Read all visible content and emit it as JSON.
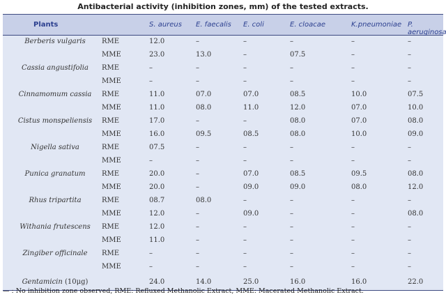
{
  "title": "Antibacterial activity (inhibition zones, mm) of the tested extracts.",
  "headers": [
    "Plants",
    "S. aureus",
    "E. faecalis",
    "E. coli",
    "E. cloacae",
    "K.pneumoniae",
    "P. aeruginosa"
  ],
  "rows": [
    {
      "plant": "Berberis vulgaris",
      "ext": "RME",
      "v": [
        "12.0",
        "–",
        "–",
        "–",
        "–",
        "–"
      ]
    },
    {
      "plant": "",
      "ext": "MME",
      "v": [
        "23.0",
        "13.0",
        "–",
        "07.5",
        "–",
        "–"
      ]
    },
    {
      "plant": "Cassia angustifolia",
      "ext": "RME",
      "v": [
        "–",
        "–",
        "–",
        "–",
        "–",
        "–"
      ]
    },
    {
      "plant": "",
      "ext": "MME",
      "v": [
        "–",
        "–",
        "–",
        "–",
        "–",
        "–"
      ]
    },
    {
      "plant": "Cinnamomum cassia",
      "ext": "RME",
      "v": [
        "11.0",
        "07.0",
        "07.0",
        "08.5",
        "10.0",
        "07.5"
      ]
    },
    {
      "plant": "",
      "ext": "MME",
      "v": [
        "11.0",
        "08.0",
        "11.0",
        "12.0",
        "07.0",
        "10.0"
      ]
    },
    {
      "plant": "Cistus monspeliensis",
      "ext": "RME",
      "v": [
        "17.0",
        "–",
        "–",
        "08.0",
        "07.0",
        "08.0"
      ]
    },
    {
      "plant": "",
      "ext": "MME",
      "v": [
        "16.0",
        "09.5",
        "08.5",
        "08.0",
        "10.0",
        "09.0"
      ]
    },
    {
      "plant": "Nigella sativa",
      "ext": "RME",
      "v": [
        "07.5",
        "–",
        "–",
        "–",
        "–",
        "–"
      ]
    },
    {
      "plant": "",
      "ext": "MME",
      "v": [
        "–",
        "–",
        "–",
        "–",
        "–",
        "–"
      ]
    },
    {
      "plant": "Punica granatum",
      "ext": "RME",
      "v": [
        "20.0",
        "–",
        "07.0",
        "08.5",
        "09.5",
        "08.0"
      ]
    },
    {
      "plant": "",
      "ext": "MME",
      "v": [
        "20.0",
        "–",
        "09.0",
        "09.0",
        "08.0",
        "12.0"
      ]
    },
    {
      "plant": "Rhus tripartita",
      "ext": "RME",
      "v": [
        "08.7",
        "08.0",
        "–",
        "–",
        "–",
        "–"
      ]
    },
    {
      "plant": "",
      "ext": "MME",
      "v": [
        "12.0",
        "–",
        "09.0",
        "–",
        "–",
        "08.0"
      ]
    },
    {
      "plant": "Withania frutescens",
      "ext": "RME",
      "v": [
        "12.0",
        "–",
        "–",
        "–",
        "–",
        "–"
      ]
    },
    {
      "plant": "",
      "ext": "MME",
      "v": [
        "11.0",
        "–",
        "–",
        "–",
        "–",
        "–"
      ]
    },
    {
      "plant": "Zingiber officinale",
      "ext": "RME",
      "v": [
        "–",
        "–",
        "–",
        "–",
        "–",
        "–"
      ]
    },
    {
      "plant": "",
      "ext": "MME",
      "v": [
        "–",
        "–",
        "–",
        "–",
        "–",
        "–"
      ]
    }
  ],
  "control": {
    "plant": "Gentamicin",
    "dose": "(10μg)",
    "v": [
      "24.0",
      "14.0",
      "25.0",
      "16.0",
      "16.0",
      "22.0"
    ]
  },
  "footnote": "— : No inhibition zone observed, RME: Refluxed Methanolic Extract, MME: Macerated Methanolic Extract."
}
